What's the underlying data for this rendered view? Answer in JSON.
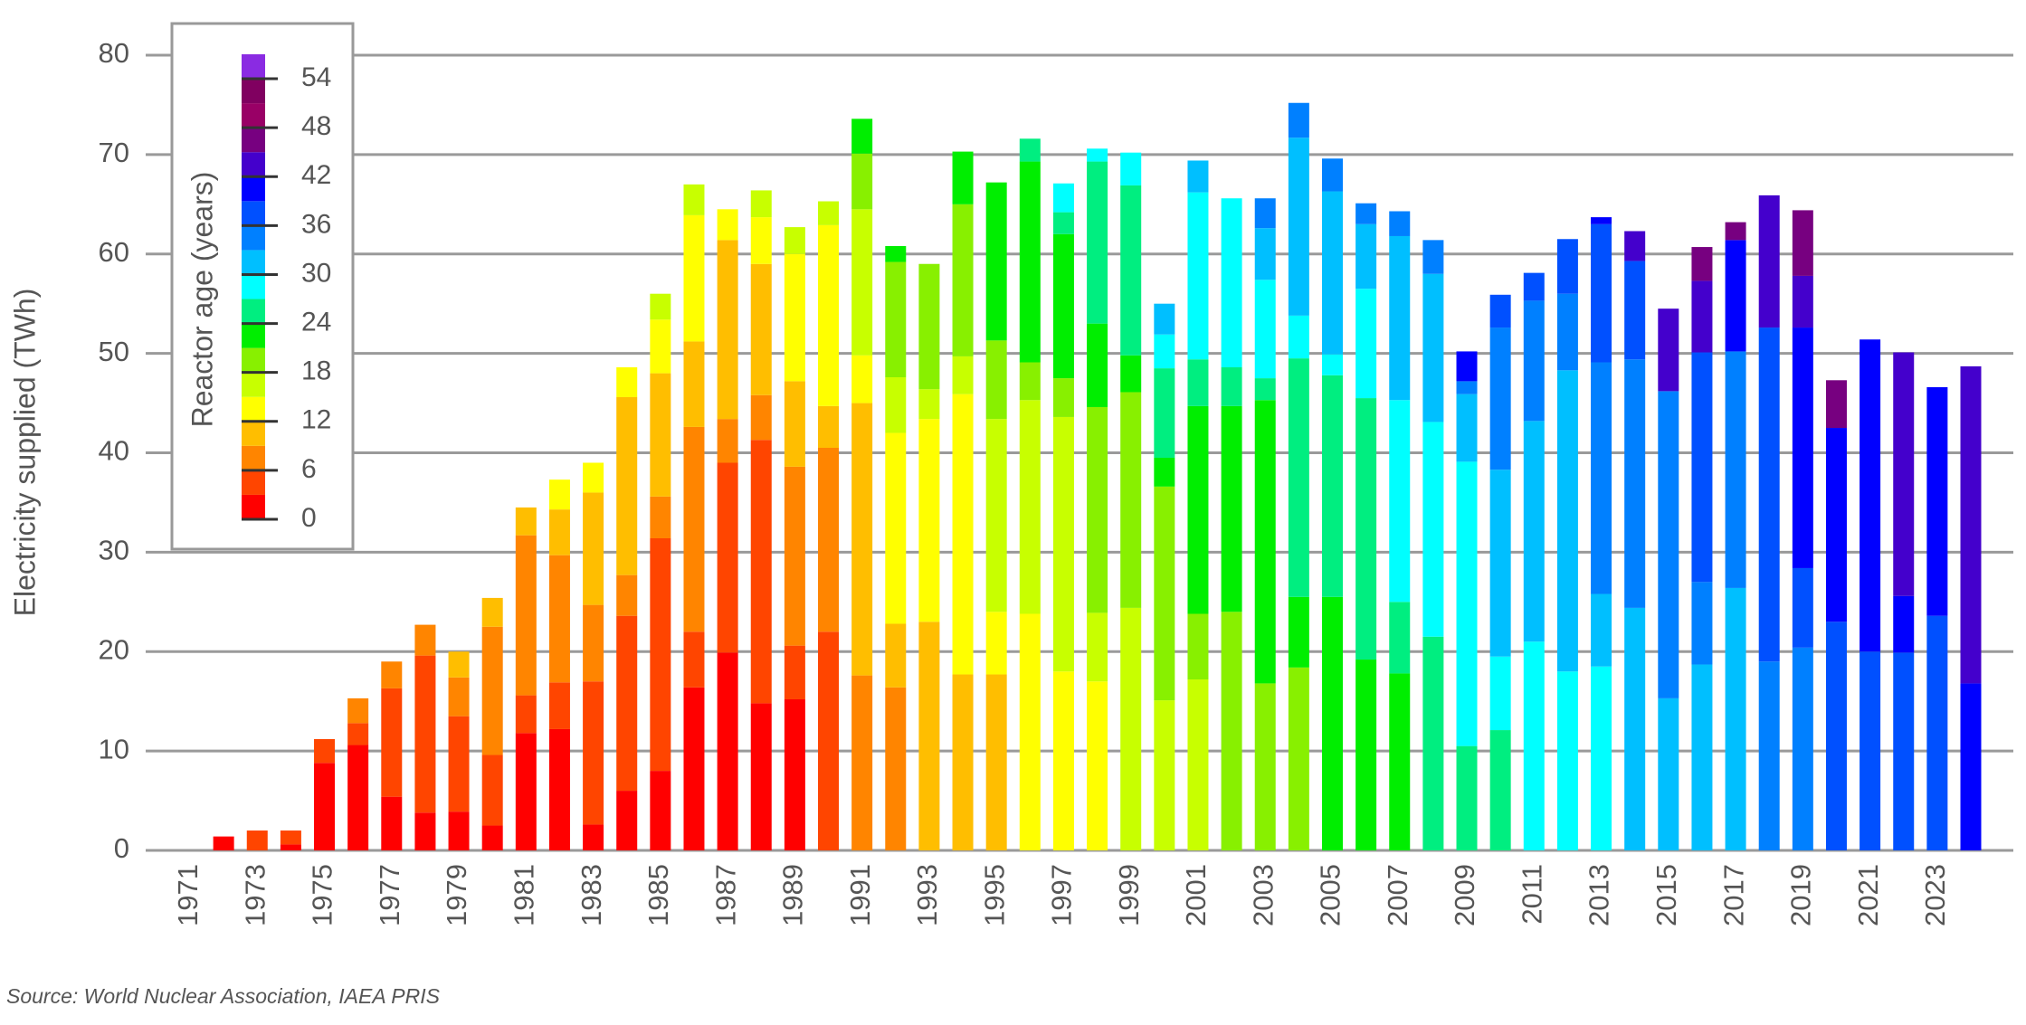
{
  "chart_data": {
    "type": "stacked-bar",
    "y_label": "Electricity supplied (TWh)",
    "source": "Source: World Nuclear Association, IAEA PRIS",
    "ylim": [
      0,
      80
    ],
    "yticks": [
      0,
      10,
      20,
      30,
      40,
      50,
      60,
      70,
      80
    ],
    "grid": true,
    "categories": [
      "1971",
      null,
      "1973",
      null,
      "1975",
      null,
      "1977",
      null,
      "1979",
      null,
      "1981",
      null,
      "1983",
      null,
      "1985",
      null,
      "1987",
      null,
      "1989",
      null,
      "1991",
      null,
      "1993",
      null,
      "1995",
      null,
      "1997",
      null,
      "1999",
      null,
      "2001",
      null,
      "2003",
      null,
      "2005",
      null,
      "2007",
      null,
      "2009",
      null,
      "2011",
      null,
      "2013",
      null,
      "2015",
      null,
      "2017",
      null,
      "2019",
      null,
      "2021",
      null,
      "2023",
      null
    ],
    "colorbar": {
      "title": "Reactor age (years)",
      "bins": [
        0,
        3,
        6,
        9,
        12,
        15,
        18,
        21,
        24,
        27,
        30,
        33,
        36,
        39,
        42,
        45,
        48,
        51,
        54,
        57
      ],
      "colors": [
        "#ff0000",
        "#ff4500",
        "#ff8500",
        "#ffbe00",
        "#ffff00",
        "#c8ff00",
        "#88f000",
        "#00ee00",
        "#00ee80",
        "#00ffff",
        "#00bfff",
        "#0080ff",
        "#0050ff",
        "#0000ff",
        "#4400cc",
        "#770080",
        "#990066",
        "#800060",
        "#8a2be2"
      ],
      "ticks": [
        0,
        6,
        12,
        18,
        24,
        30,
        36,
        42,
        48,
        54
      ]
    },
    "stacks": [
      [],
      [
        {
          "age": 0,
          "value": 1.4
        }
      ],
      [
        {
          "age": 3,
          "value": 2.0
        }
      ],
      [
        {
          "age": 0,
          "value": 0.6
        },
        {
          "age": 3,
          "value": 1.4
        }
      ],
      [
        {
          "age": 0,
          "value": 8.8
        },
        {
          "age": 3,
          "value": 2.4
        }
      ],
      [
        {
          "age": 0,
          "value": 10.6
        },
        {
          "age": 3,
          "value": 2.2
        },
        {
          "age": 6,
          "value": 2.5
        }
      ],
      [
        {
          "age": 0,
          "value": 5.4
        },
        {
          "age": 3,
          "value": 10.9
        },
        {
          "age": 6,
          "value": 2.7
        }
      ],
      [
        {
          "age": 0,
          "value": 3.8
        },
        {
          "age": 3,
          "value": 15.8
        },
        {
          "age": 6,
          "value": 3.1
        }
      ],
      [
        {
          "age": 0,
          "value": 3.9
        },
        {
          "age": 3,
          "value": 9.6
        },
        {
          "age": 6,
          "value": 3.9
        },
        {
          "age": 9,
          "value": 2.6
        }
      ],
      [
        {
          "age": 0,
          "value": 2.5
        },
        {
          "age": 3,
          "value": 7.1
        },
        {
          "age": 6,
          "value": 12.9
        },
        {
          "age": 9,
          "value": 2.9
        }
      ],
      [
        {
          "age": 0,
          "value": 11.8
        },
        {
          "age": 3,
          "value": 3.8
        },
        {
          "age": 6,
          "value": 16.1
        },
        {
          "age": 9,
          "value": 2.8
        }
      ],
      [
        {
          "age": 0,
          "value": 12.2
        },
        {
          "age": 3,
          "value": 4.7
        },
        {
          "age": 6,
          "value": 12.8
        },
        {
          "age": 9,
          "value": 4.6
        },
        {
          "age": 12,
          "value": 3.0
        }
      ],
      [
        {
          "age": 0,
          "value": 2.6
        },
        {
          "age": 3,
          "value": 14.4
        },
        {
          "age": 6,
          "value": 7.7
        },
        {
          "age": 9,
          "value": 11.3
        },
        {
          "age": 12,
          "value": 3.0
        }
      ],
      [
        {
          "age": 0,
          "value": 6.0
        },
        {
          "age": 3,
          "value": 17.6
        },
        {
          "age": 6,
          "value": 4.1
        },
        {
          "age": 9,
          "value": 17.9
        },
        {
          "age": 12,
          "value": 3.0
        }
      ],
      [
        {
          "age": 0,
          "value": 8.0
        },
        {
          "age": 3,
          "value": 23.4
        },
        {
          "age": 6,
          "value": 4.2
        },
        {
          "age": 9,
          "value": 12.4
        },
        {
          "age": 12,
          "value": 5.4
        },
        {
          "age": 15,
          "value": 2.6
        }
      ],
      [
        {
          "age": 0,
          "value": 16.4
        },
        {
          "age": 3,
          "value": 5.6
        },
        {
          "age": 6,
          "value": 20.6
        },
        {
          "age": 9,
          "value": 8.6
        },
        {
          "age": 12,
          "value": 12.7
        },
        {
          "age": 15,
          "value": 3.1
        }
      ],
      [
        {
          "age": 0,
          "value": 19.9
        },
        {
          "age": 3,
          "value": 19.1
        },
        {
          "age": 6,
          "value": 4.4
        },
        {
          "age": 9,
          "value": 18.0
        },
        {
          "age": 12,
          "value": 3.1
        }
      ],
      [
        {
          "age": 0,
          "value": 14.8
        },
        {
          "age": 3,
          "value": 26.5
        },
        {
          "age": 6,
          "value": 4.5
        },
        {
          "age": 9,
          "value": 13.2
        },
        {
          "age": 12,
          "value": 4.7
        },
        {
          "age": 15,
          "value": 2.7
        }
      ],
      [
        {
          "age": 0,
          "value": 15.2
        },
        {
          "age": 3,
          "value": 5.4
        },
        {
          "age": 6,
          "value": 18.0
        },
        {
          "age": 9,
          "value": 8.6
        },
        {
          "age": 12,
          "value": 12.8
        },
        {
          "age": 15,
          "value": 2.7
        }
      ],
      [
        {
          "age": 3,
          "value": 22.0
        },
        {
          "age": 6,
          "value": 18.5
        },
        {
          "age": 9,
          "value": 4.2
        },
        {
          "age": 12,
          "value": 18.2
        },
        {
          "age": 15,
          "value": 2.4
        }
      ],
      [
        {
          "age": 6,
          "value": 17.6
        },
        {
          "age": 9,
          "value": 27.4
        },
        {
          "age": 12,
          "value": 4.8
        },
        {
          "age": 15,
          "value": 14.7
        },
        {
          "age": 18,
          "value": 5.6
        },
        {
          "age": 21,
          "value": 3.5
        }
      ],
      [
        {
          "age": 6,
          "value": 16.4
        },
        {
          "age": 9,
          "value": 6.4
        },
        {
          "age": 12,
          "value": 19.2
        },
        {
          "age": 15,
          "value": 5.6
        },
        {
          "age": 18,
          "value": 11.6
        },
        {
          "age": 21,
          "value": 1.6
        }
      ],
      [
        {
          "age": 9,
          "value": 23.0
        },
        {
          "age": 12,
          "value": 20.4
        },
        {
          "age": 15,
          "value": 3.0
        },
        {
          "age": 18,
          "value": 12.6
        }
      ],
      [
        {
          "age": 9,
          "value": 17.7
        },
        {
          "age": 12,
          "value": 28.2
        },
        {
          "age": 15,
          "value": 3.8
        },
        {
          "age": 18,
          "value": 15.3
        },
        {
          "age": 21,
          "value": 5.3
        }
      ],
      [
        {
          "age": 9,
          "value": 17.7
        },
        {
          "age": 12,
          "value": 6.3
        },
        {
          "age": 15,
          "value": 19.4
        },
        {
          "age": 18,
          "value": 7.9
        },
        {
          "age": 21,
          "value": 15.9
        }
      ],
      [
        {
          "age": 12,
          "value": 23.8
        },
        {
          "age": 15,
          "value": 21.5
        },
        {
          "age": 18,
          "value": 3.8
        },
        {
          "age": 21,
          "value": 20.2
        },
        {
          "age": 24,
          "value": 2.3
        }
      ],
      [
        {
          "age": 12,
          "value": 18.0
        },
        {
          "age": 15,
          "value": 25.6
        },
        {
          "age": 18,
          "value": 3.9
        },
        {
          "age": 21,
          "value": 14.5
        },
        {
          "age": 24,
          "value": 2.2
        },
        {
          "age": 27,
          "value": 2.9
        }
      ],
      [
        {
          "age": 12,
          "value": 17.0
        },
        {
          "age": 15,
          "value": 6.9
        },
        {
          "age": 18,
          "value": 20.7
        },
        {
          "age": 21,
          "value": 8.4
        },
        {
          "age": 24,
          "value": 16.3
        },
        {
          "age": 27,
          "value": 1.3
        }
      ],
      [
        {
          "age": 15,
          "value": 24.4
        },
        {
          "age": 18,
          "value": 21.7
        },
        {
          "age": 21,
          "value": 3.7
        },
        {
          "age": 24,
          "value": 17.1
        },
        {
          "age": 27,
          "value": 3.3
        }
      ],
      [
        {
          "age": 15,
          "value": 15.1
        },
        {
          "age": 18,
          "value": 21.5
        },
        {
          "age": 21,
          "value": 2.9
        },
        {
          "age": 24,
          "value": 9.0
        },
        {
          "age": 27,
          "value": 3.4
        },
        {
          "age": 30,
          "value": 3.1
        }
      ],
      [
        {
          "age": 15,
          "value": 17.2
        },
        {
          "age": 18,
          "value": 6.6
        },
        {
          "age": 21,
          "value": 20.9
        },
        {
          "age": 24,
          "value": 4.7
        },
        {
          "age": 27,
          "value": 16.8
        },
        {
          "age": 30,
          "value": 3.2
        }
      ],
      [
        {
          "age": 18,
          "value": 24.0
        },
        {
          "age": 21,
          "value": 20.7
        },
        {
          "age": 24,
          "value": 3.9
        },
        {
          "age": 27,
          "value": 17.0
        }
      ],
      [
        {
          "age": 18,
          "value": 16.8
        },
        {
          "age": 21,
          "value": 28.5
        },
        {
          "age": 24,
          "value": 2.2
        },
        {
          "age": 27,
          "value": 9.9
        },
        {
          "age": 30,
          "value": 5.2
        },
        {
          "age": 33,
          "value": 3.0
        }
      ],
      [
        {
          "age": 18,
          "value": 18.4
        },
        {
          "age": 21,
          "value": 7.1
        },
        {
          "age": 24,
          "value": 24.0
        },
        {
          "age": 27,
          "value": 4.3
        },
        {
          "age": 30,
          "value": 17.9
        },
        {
          "age": 33,
          "value": 3.5
        }
      ],
      [
        {
          "age": 21,
          "value": 25.5
        },
        {
          "age": 24,
          "value": 22.3
        },
        {
          "age": 27,
          "value": 2.1
        },
        {
          "age": 30,
          "value": 16.4
        },
        {
          "age": 33,
          "value": 3.3
        }
      ],
      [
        {
          "age": 21,
          "value": 19.2
        },
        {
          "age": 24,
          "value": 26.3
        },
        {
          "age": 27,
          "value": 11.0
        },
        {
          "age": 30,
          "value": 6.5
        },
        {
          "age": 33,
          "value": 2.1
        }
      ],
      [
        {
          "age": 21,
          "value": 17.8
        },
        {
          "age": 24,
          "value": 7.2
        },
        {
          "age": 27,
          "value": 20.3
        },
        {
          "age": 30,
          "value": 16.5
        },
        {
          "age": 33,
          "value": 2.5
        }
      ],
      [
        {
          "age": 24,
          "value": 21.5
        },
        {
          "age": 27,
          "value": 21.6
        },
        {
          "age": 30,
          "value": 14.9
        },
        {
          "age": 33,
          "value": 3.4
        }
      ],
      [
        {
          "age": 24,
          "value": 10.5
        },
        {
          "age": 27,
          "value": 28.6
        },
        {
          "age": 30,
          "value": 6.8
        },
        {
          "age": 33,
          "value": 1.3
        },
        {
          "age": 39,
          "value": 3.0
        }
      ],
      [
        {
          "age": 24,
          "value": 12.1
        },
        {
          "age": 27,
          "value": 7.4
        },
        {
          "age": 30,
          "value": 18.8
        },
        {
          "age": 33,
          "value": 14.3
        },
        {
          "age": 36,
          "value": 3.3
        }
      ],
      [
        {
          "age": 27,
          "value": 21.0
        },
        {
          "age": 30,
          "value": 22.2
        },
        {
          "age": 33,
          "value": 12.1
        },
        {
          "age": 36,
          "value": 2.8
        }
      ],
      [
        {
          "age": 27,
          "value": 18.0
        },
        {
          "age": 30,
          "value": 30.3
        },
        {
          "age": 33,
          "value": 7.7
        },
        {
          "age": 36,
          "value": 5.5
        }
      ],
      [
        {
          "age": 27,
          "value": 18.5
        },
        {
          "age": 30,
          "value": 7.3
        },
        {
          "age": 33,
          "value": 23.3
        },
        {
          "age": 36,
          "value": 13.9
        },
        {
          "age": 39,
          "value": 0.7
        }
      ],
      [
        {
          "age": 30,
          "value": 24.4
        },
        {
          "age": 33,
          "value": 25.0
        },
        {
          "age": 36,
          "value": 9.9
        },
        {
          "age": 42,
          "value": 3.0
        }
      ],
      [
        {
          "age": 30,
          "value": 15.3
        },
        {
          "age": 33,
          "value": 30.9
        },
        {
          "age": 42,
          "value": 8.3
        }
      ],
      [
        {
          "age": 30,
          "value": 18.7
        },
        {
          "age": 33,
          "value": 8.3
        },
        {
          "age": 36,
          "value": 23.1
        },
        {
          "age": 42,
          "value": 7.2
        },
        {
          "age": 45,
          "value": 3.4
        }
      ],
      [
        {
          "age": 30,
          "value": 26.4
        },
        {
          "age": 33,
          "value": 23.8
        },
        {
          "age": 39,
          "value": 11.2
        },
        {
          "age": 45,
          "value": 1.8
        }
      ],
      [
        {
          "age": 33,
          "value": 19.0
        },
        {
          "age": 36,
          "value": 33.6
        },
        {
          "age": 42,
          "value": 13.3
        }
      ],
      [
        {
          "age": 33,
          "value": 20.4
        },
        {
          "age": 36,
          "value": 8.0
        },
        {
          "age": 39,
          "value": 24.2
        },
        {
          "age": 42,
          "value": 5.2
        },
        {
          "age": 45,
          "value": 6.6
        }
      ],
      [
        {
          "age": 36,
          "value": 23.0
        },
        {
          "age": 39,
          "value": 19.5
        },
        {
          "age": 45,
          "value": 4.8
        }
      ],
      [
        {
          "age": 36,
          "value": 20.0
        },
        {
          "age": 39,
          "value": 31.4
        }
      ],
      [
        {
          "age": 36,
          "value": 19.9
        },
        {
          "age": 39,
          "value": 5.7
        },
        {
          "age": 42,
          "value": 24.5
        }
      ],
      [
        {
          "age": 36,
          "value": 23.6
        },
        {
          "age": 39,
          "value": 23.0
        }
      ],
      [
        {
          "age": 39,
          "value": 16.8
        },
        {
          "age": 42,
          "value": 31.9
        }
      ]
    ]
  }
}
